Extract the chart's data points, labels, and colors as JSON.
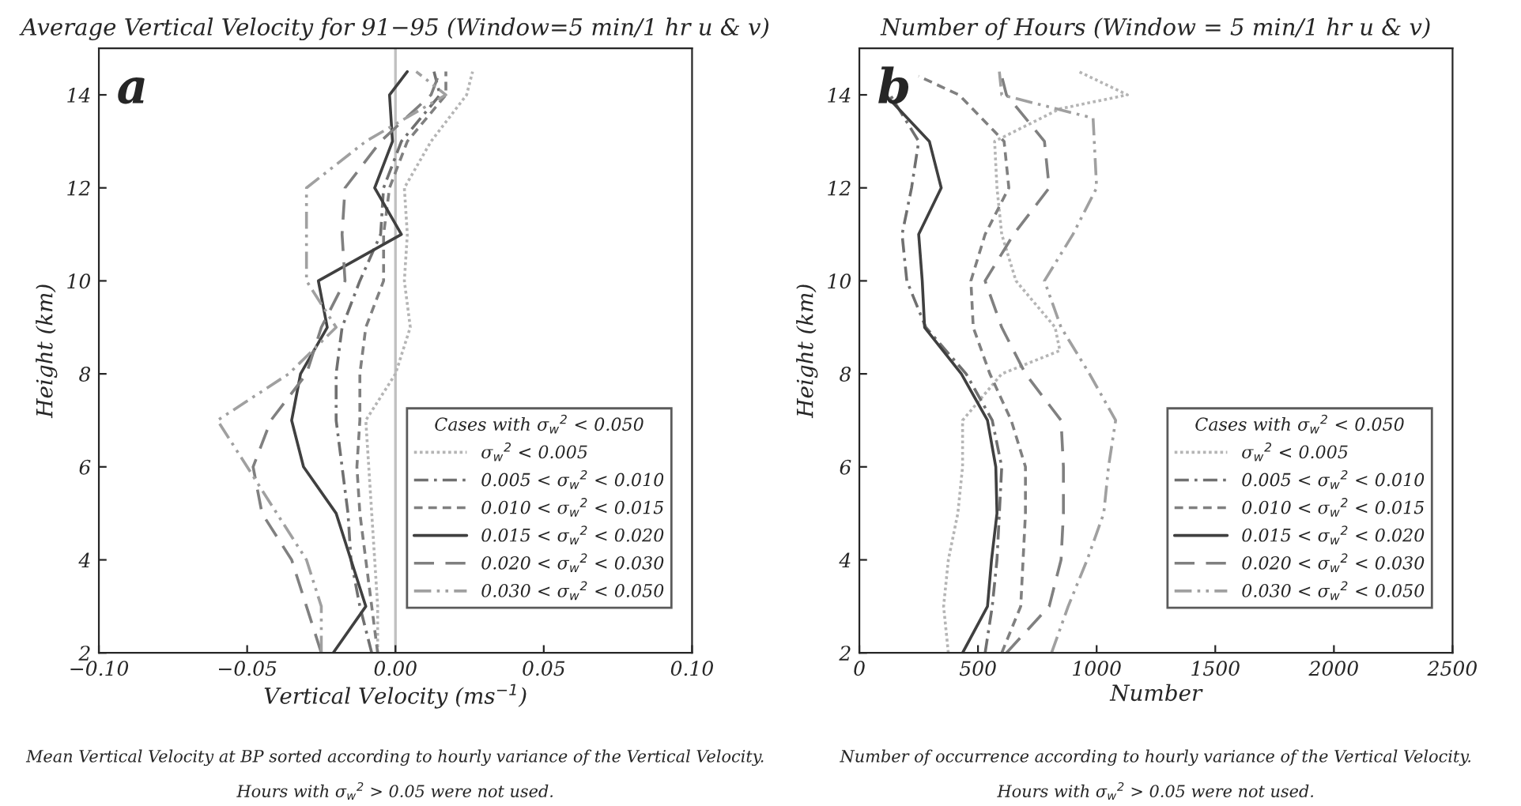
{
  "chart_data": [
    {
      "type": "line",
      "title": "Average Vertical Velocity for 91−95 (Window=5 min/1 hr u & v)",
      "xlabel": "Vertical Velocity (ms$^{−1}$)",
      "ylabel": "Height (km)",
      "legend_title": "Cases with σ$_{w}$$^{2}$ < 0.050",
      "legend": "bottom right",
      "grid": false,
      "xlim": [
        -0.1,
        0.1
      ],
      "xticks": [
        {
          "value": -0.1,
          "label": "−0.10"
        },
        {
          "value": -0.05,
          "label": "−0.05"
        },
        {
          "value": 0,
          "label": "0.00"
        },
        {
          "value": 0.05,
          "label": "0.05"
        },
        {
          "value": 0.1,
          "label": "0.10"
        }
      ],
      "ylim": [
        2,
        15
      ],
      "yticks": [
        2,
        4,
        6,
        8,
        10,
        12,
        14
      ],
      "ref_lines": [
        {
          "axis": "x",
          "value": 0,
          "color": "#c0c0c0"
        }
      ],
      "annotations": [
        "a",
        "Mean Vertical Velocity at BP sorted according to hourly variance of the Vertical Velocity.",
        "Hours with σ$_{w}$$^{2}$ > 0.05 were not used."
      ],
      "series": [
        {
          "name": "σ$_{w}$$^{2}$ < 0.005",
          "color": "#b5b5b5",
          "line_style": "dotted",
          "x": [
            -0.006,
            -0.006,
            -0.007,
            -0.008,
            -0.009,
            -0.01,
            0.0,
            0.005,
            0.003,
            0.004,
            0.003,
            0.012,
            0.024,
            0.026
          ],
          "values": [
            2,
            3,
            4,
            5,
            6,
            7,
            8,
            9,
            10,
            11,
            12,
            13,
            14,
            14.5
          ]
        },
        {
          "name": "0.005 < σ$_{w}$$^{2}$ < 0.010",
          "color": "#707070",
          "line_style": "dashdot",
          "x": [
            -0.008,
            -0.012,
            -0.015,
            -0.016,
            -0.018,
            -0.02,
            -0.02,
            -0.018,
            -0.012,
            -0.005,
            -0.004,
            0.002,
            0.015,
            0.013
          ],
          "values": [
            2,
            3,
            4,
            5,
            6,
            7,
            8,
            9,
            10,
            11,
            12,
            13,
            14,
            14.5
          ]
        },
        {
          "name": "0.010 < σ$_{w}$$^{2}$ < 0.015",
          "color": "#808080",
          "line_style": "dashed",
          "x": [
            -0.006,
            -0.008,
            -0.01,
            -0.012,
            -0.013,
            -0.012,
            -0.012,
            -0.01,
            -0.004,
            -0.004,
            -0.002,
            0.004,
            0.017,
            0.017
          ],
          "values": [
            2,
            3,
            4,
            5,
            6,
            7,
            8,
            9,
            10,
            11,
            12,
            13,
            14,
            14.5
          ]
        },
        {
          "name": "0.015 < σ$_{w}$$^{2}$ < 0.020",
          "color": "#404040",
          "line_style": "solid",
          "x": [
            -0.021,
            -0.01,
            -0.015,
            -0.02,
            -0.031,
            -0.035,
            -0.032,
            -0.023,
            -0.026,
            0.002,
            -0.007,
            -0.001,
            -0.002,
            0.004
          ],
          "values": [
            2,
            3,
            4,
            5,
            6,
            7,
            8,
            9,
            10,
            11,
            12,
            13,
            14,
            14.5
          ]
        },
        {
          "name": "0.020 < σ$_{w}$$^{2}$ < 0.030",
          "color": "#808080",
          "line_style": "longdashed",
          "x": [
            -0.025,
            -0.03,
            -0.035,
            -0.045,
            -0.048,
            -0.042,
            -0.03,
            -0.025,
            -0.017,
            -0.018,
            -0.017,
            -0.005,
            0.012,
            0.015
          ],
          "values": [
            2,
            3,
            4,
            5,
            6,
            7,
            8,
            9,
            10,
            11,
            12,
            13,
            14,
            14.5
          ]
        },
        {
          "name": "0.030 < σ$_{w}$$^{2}$ < 0.050",
          "color": "#a0a0a0",
          "line_style": "dashdotdot",
          "x": [
            -0.025,
            -0.025,
            -0.03,
            -0.04,
            -0.05,
            -0.06,
            -0.036,
            -0.02,
            -0.03,
            -0.03,
            -0.03,
            -0.01,
            0.017,
            0.007
          ],
          "values": [
            2,
            3,
            4,
            5,
            6,
            7,
            8,
            9,
            10,
            11,
            12,
            13,
            14,
            14.5
          ]
        }
      ]
    },
    {
      "type": "line",
      "title": "Number of Hours (Window = 5 min/1 hr u & v)",
      "xlabel": "Number",
      "ylabel": "Height (km)",
      "legend_title": "Cases with σ$_{w}$$^{2}$ < 0.050",
      "legend": "bottom right",
      "grid": false,
      "xlim": [
        0,
        2500
      ],
      "xticks": [
        0,
        500,
        1000,
        1500,
        2000,
        2500
      ],
      "ylim": [
        2,
        15
      ],
      "yticks": [
        2,
        4,
        6,
        8,
        10,
        12,
        14
      ],
      "annotations": [
        "b",
        "Number of occurrence according to hourly variance of the Vertical Velocity.",
        "Hours with σ$_{w}$$^{2}$ > 0.05 were not used."
      ],
      "series": [
        {
          "name": "σ$_{w}$$^{2}$ < 0.005",
          "color": "#b5b5b5",
          "line_style": "dotted",
          "x": [
            375,
            355,
            375,
            415,
            435,
            435,
            600,
            845,
            825,
            660,
            600,
            580,
            570,
            845,
            1130,
            925
          ],
          "values": [
            2,
            3,
            4,
            5,
            6,
            7,
            8,
            8.5,
            9,
            10,
            11,
            12,
            13,
            13.7,
            14,
            14.5
          ]
        },
        {
          "name": "0.005 < σ$_{w}$$^{2}$ < 0.010",
          "color": "#707070",
          "line_style": "dashdot",
          "x": [
            530,
            560,
            580,
            590,
            600,
            560,
            450,
            280,
            200,
            180,
            220,
            250,
            130
          ],
          "values": [
            2,
            3,
            4,
            5,
            6,
            7,
            8,
            9,
            10,
            11,
            12,
            13,
            14
          ]
        },
        {
          "name": "0.010 < σ$_{w}$$^{2}$ < 0.015",
          "color": "#808080",
          "line_style": "dashed",
          "x": [
            600,
            680,
            690,
            700,
            700,
            640,
            550,
            480,
            470,
            530,
            630,
            610,
            420,
            250
          ],
          "values": [
            2,
            3,
            4,
            5,
            6,
            7,
            8,
            9,
            10,
            11,
            12,
            13,
            14,
            14.4
          ]
        },
        {
          "name": "0.015 < σ$_{w}$$^{2}$ < 0.020",
          "color": "#404040",
          "line_style": "solid",
          "x": [
            435,
            540,
            557,
            580,
            575,
            540,
            430,
            275,
            265,
            250,
            345,
            295,
            110
          ],
          "values": [
            2,
            3,
            4,
            5,
            6,
            7,
            8,
            9,
            10,
            11,
            12,
            13,
            14
          ]
        },
        {
          "name": "0.020 < σ$_{w}$$^{2}$ < 0.030",
          "color": "#808080",
          "line_style": "longdashed",
          "x": [
            620,
            800,
            850,
            860,
            860,
            850,
            700,
            600,
            530,
            650,
            800,
            780,
            620,
            600
          ],
          "values": [
            2,
            3,
            4,
            5,
            6,
            7,
            8,
            9,
            10,
            11,
            12,
            13,
            14,
            14.4
          ]
        },
        {
          "name": "0.030 < σ$_{w}$$^{2}$ < 0.050",
          "color": "#a0a0a0",
          "line_style": "dashdotdot",
          "x": [
            810,
            880,
            960,
            1030,
            1050,
            1080,
            970,
            850,
            780,
            900,
            1000,
            990,
            985,
            600,
            590
          ],
          "values": [
            2,
            3,
            4,
            5,
            6,
            7,
            8,
            9,
            10,
            11,
            12,
            13,
            13.5,
            14,
            14.5
          ]
        }
      ]
    }
  ]
}
